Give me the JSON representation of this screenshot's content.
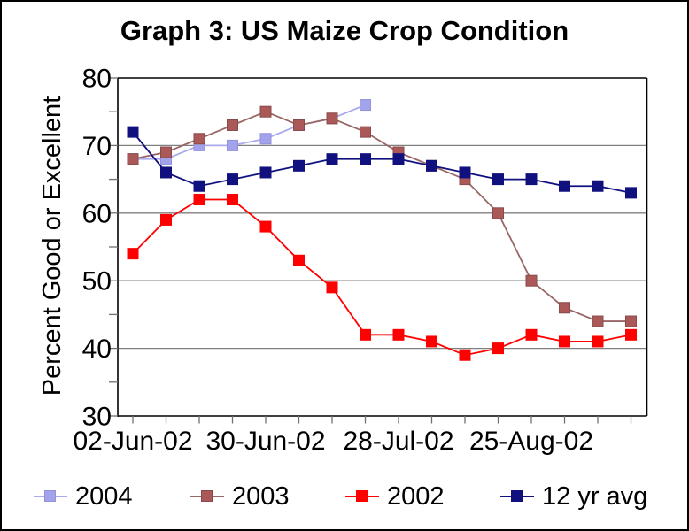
{
  "window": {
    "background_color": "#ffffff",
    "border_color": "#000000"
  },
  "title": "Graph 3: US Maize Crop Condition",
  "chart_data": {
    "type": "line",
    "title": "Graph 3: US Maize Crop Condition",
    "xlabel": "",
    "ylabel": "Percent Good or Excellent",
    "ylim": [
      30,
      80
    ],
    "y_major_step": 10,
    "y_minor_step": 5,
    "grid": "horizontal-major",
    "legend_position": "bottom",
    "n_points": 16,
    "y_tick_labels": [
      "80",
      "70",
      "60",
      "50",
      "40",
      "30"
    ],
    "x_tick_labels": [
      {
        "index": 0,
        "label": "02-Jun-02"
      },
      {
        "index": 4,
        "label": "30-Jun-02"
      },
      {
        "index": 8,
        "label": "28-Jul-02"
      },
      {
        "index": 12,
        "label": "25-Aug-02"
      }
    ],
    "axis_color": "#000000",
    "gridline_color": "#808080",
    "tick_color": "#707070",
    "series": [
      {
        "name": "2004",
        "line_color": "#aaaaee",
        "marker_color": "#a3a3ec",
        "marker_edge": "#9292dd",
        "values": [
          68,
          68,
          70,
          70,
          71,
          73,
          74,
          76
        ]
      },
      {
        "name": "2003",
        "line_color": "#996666",
        "marker_color": "#aa5858",
        "marker_edge": "#8a4a4a",
        "values": [
          68,
          69,
          71,
          73,
          75,
          73,
          74,
          72,
          69,
          67,
          65,
          60,
          50,
          46,
          44,
          44
        ]
      },
      {
        "name": "2002",
        "line_color": "#ff0000",
        "marker_color": "#ff0000",
        "marker_edge": "#ff0000",
        "values": [
          54,
          59,
          62,
          62,
          58,
          53,
          49,
          42,
          42,
          41,
          39,
          40,
          42,
          41,
          41,
          42
        ]
      },
      {
        "name": "12 yr avg",
        "line_color": "#10107f",
        "marker_color": "#10107f",
        "marker_edge": "#10107f",
        "values": [
          72,
          66,
          64,
          65,
          66,
          67,
          68,
          68,
          68,
          67,
          66,
          65,
          65,
          64,
          64,
          63
        ]
      }
    ]
  }
}
